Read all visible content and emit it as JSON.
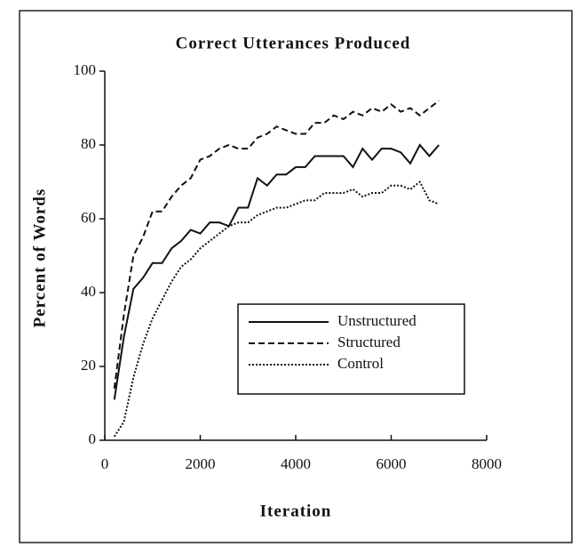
{
  "chart_data": {
    "type": "line",
    "title": "Correct Utterances Produced",
    "xlabel": "Iteration",
    "ylabel": "Percent of Words",
    "x": [
      200,
      400,
      600,
      800,
      1000,
      1200,
      1400,
      1600,
      1800,
      2000,
      2200,
      2400,
      2600,
      2800,
      3000,
      3200,
      3400,
      3600,
      3800,
      4000,
      4200,
      4400,
      4600,
      4800,
      5000,
      5200,
      5400,
      5600,
      5800,
      6000,
      6200,
      6400,
      6600,
      6800,
      7000
    ],
    "series": [
      {
        "name": "Unstructured",
        "color": "#111111",
        "style": "solid",
        "values": [
          11,
          28,
          41,
          44,
          48,
          48,
          52,
          54,
          57,
          56,
          59,
          59,
          58,
          63,
          63,
          71,
          69,
          72,
          72,
          74,
          74,
          77,
          77,
          77,
          77,
          74,
          79,
          76,
          79,
          79,
          78,
          75,
          80,
          77,
          80
        ]
      },
      {
        "name": "Structured",
        "color": "#111111",
        "style": "dashed",
        "values": [
          14,
          34,
          50,
          55,
          62,
          62,
          66,
          69,
          71,
          76,
          77,
          79,
          80,
          79,
          79,
          82,
          83,
          85,
          84,
          83,
          83,
          86,
          86,
          88,
          87,
          89,
          88,
          90,
          89,
          91,
          89,
          90,
          88,
          90,
          92
        ]
      },
      {
        "name": "Control",
        "color": "#111111",
        "style": "dotted",
        "values": [
          1,
          5,
          17,
          26,
          33,
          38,
          43,
          47,
          49,
          52,
          54,
          56,
          58,
          59,
          59,
          61,
          62,
          63,
          63,
          64,
          65,
          65,
          67,
          67,
          67,
          68,
          66,
          67,
          67,
          69,
          69,
          68,
          70,
          65,
          64
        ]
      }
    ],
    "xlim": [
      0,
      8000
    ],
    "xticks": [
      0,
      2000,
      4000,
      6000,
      8000
    ],
    "ylim": [
      0,
      100
    ],
    "yticks": [
      0,
      20,
      40,
      60,
      80,
      100
    ],
    "legend": "lower right"
  }
}
